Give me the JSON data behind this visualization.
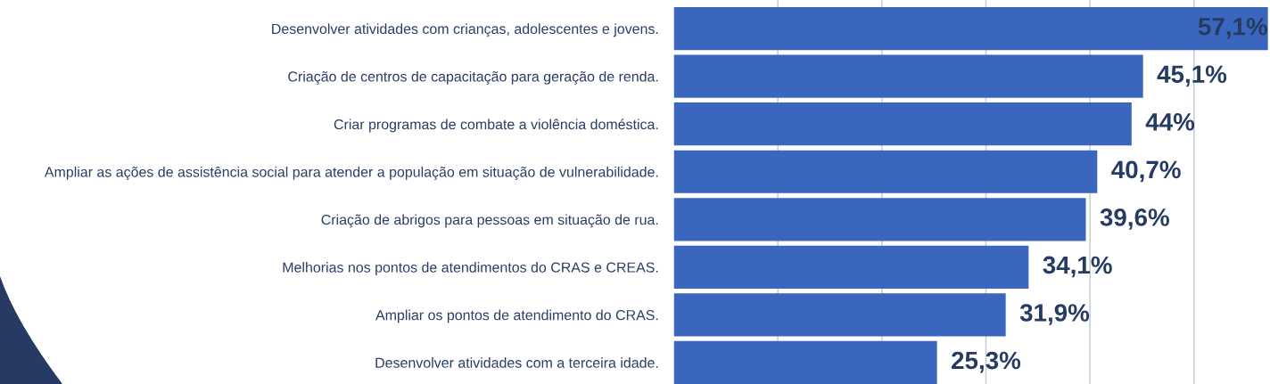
{
  "chart_data": {
    "type": "bar",
    "orientation": "horizontal",
    "categories": [
      "Desenvolver atividades com crianças, adolescentes e jovens.",
      "Criação de centros de capacitação para geração de renda.",
      "Criar programas de combate a violência doméstica.",
      "Ampliar as ações de assistência social para atender a população em situação de vulnerabilidade.",
      "Criação de abrigos para pessoas em situação de rua.",
      "Melhorias nos pontos de atendimentos do CRAS e CREAS.",
      "Ampliar os pontos de atendimento do CRAS.",
      "Desenvolver atividades com a terceira idade."
    ],
    "values": [
      57.1,
      45.1,
      44,
      40.7,
      39.6,
      34.1,
      31.9,
      25.3
    ],
    "value_labels": [
      "57,1%",
      "45,1%",
      "44%",
      "40,7%",
      "39,6%",
      "34,1%",
      "31,9%",
      "25,3%"
    ],
    "color": "#3a67bd",
    "xlim": [
      0,
      57.3
    ],
    "xticks": [
      {
        "value": 10,
        "label": null
      },
      {
        "value": 20,
        "label": null
      },
      {
        "value": 30,
        "label": null
      },
      {
        "value": 40,
        "label": null
      },
      {
        "value": 50,
        "label": null
      }
    ],
    "grid": "x",
    "tick_labels": "y"
  }
}
